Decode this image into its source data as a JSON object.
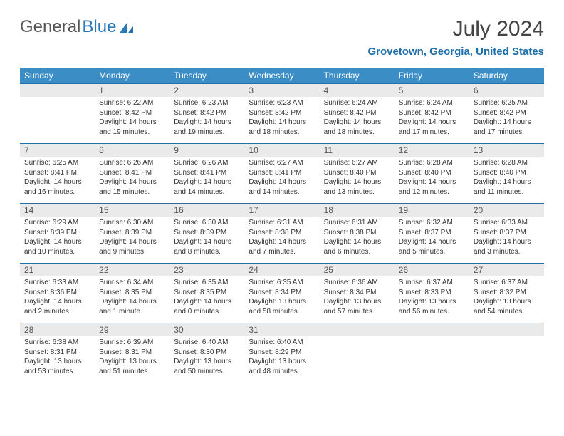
{
  "brand": {
    "part1": "General",
    "part2": "Blue"
  },
  "title": "July 2024",
  "location": "Grovetown, Georgia, United States",
  "colors": {
    "header_bg": "#3b8dc6",
    "header_text": "#ffffff",
    "accent": "#1f6fa8",
    "daynum_bg": "#eaeaea",
    "body_text": "#333333",
    "page_bg": "#ffffff"
  },
  "typography": {
    "title_fontsize": 30,
    "location_fontsize": 15,
    "dayheader_fontsize": 12,
    "daynum_fontsize": 12,
    "body_fontsize": 10
  },
  "day_headers": [
    "Sunday",
    "Monday",
    "Tuesday",
    "Wednesday",
    "Thursday",
    "Friday",
    "Saturday"
  ],
  "weeks": [
    [
      {
        "n": "",
        "sunrise": "",
        "sunset": "",
        "daylight": ""
      },
      {
        "n": "1",
        "sunrise": "Sunrise: 6:22 AM",
        "sunset": "Sunset: 8:42 PM",
        "daylight": "Daylight: 14 hours and 19 minutes."
      },
      {
        "n": "2",
        "sunrise": "Sunrise: 6:23 AM",
        "sunset": "Sunset: 8:42 PM",
        "daylight": "Daylight: 14 hours and 19 minutes."
      },
      {
        "n": "3",
        "sunrise": "Sunrise: 6:23 AM",
        "sunset": "Sunset: 8:42 PM",
        "daylight": "Daylight: 14 hours and 18 minutes."
      },
      {
        "n": "4",
        "sunrise": "Sunrise: 6:24 AM",
        "sunset": "Sunset: 8:42 PM",
        "daylight": "Daylight: 14 hours and 18 minutes."
      },
      {
        "n": "5",
        "sunrise": "Sunrise: 6:24 AM",
        "sunset": "Sunset: 8:42 PM",
        "daylight": "Daylight: 14 hours and 17 minutes."
      },
      {
        "n": "6",
        "sunrise": "Sunrise: 6:25 AM",
        "sunset": "Sunset: 8:42 PM",
        "daylight": "Daylight: 14 hours and 17 minutes."
      }
    ],
    [
      {
        "n": "7",
        "sunrise": "Sunrise: 6:25 AM",
        "sunset": "Sunset: 8:41 PM",
        "daylight": "Daylight: 14 hours and 16 minutes."
      },
      {
        "n": "8",
        "sunrise": "Sunrise: 6:26 AM",
        "sunset": "Sunset: 8:41 PM",
        "daylight": "Daylight: 14 hours and 15 minutes."
      },
      {
        "n": "9",
        "sunrise": "Sunrise: 6:26 AM",
        "sunset": "Sunset: 8:41 PM",
        "daylight": "Daylight: 14 hours and 14 minutes."
      },
      {
        "n": "10",
        "sunrise": "Sunrise: 6:27 AM",
        "sunset": "Sunset: 8:41 PM",
        "daylight": "Daylight: 14 hours and 14 minutes."
      },
      {
        "n": "11",
        "sunrise": "Sunrise: 6:27 AM",
        "sunset": "Sunset: 8:40 PM",
        "daylight": "Daylight: 14 hours and 13 minutes."
      },
      {
        "n": "12",
        "sunrise": "Sunrise: 6:28 AM",
        "sunset": "Sunset: 8:40 PM",
        "daylight": "Daylight: 14 hours and 12 minutes."
      },
      {
        "n": "13",
        "sunrise": "Sunrise: 6:28 AM",
        "sunset": "Sunset: 8:40 PM",
        "daylight": "Daylight: 14 hours and 11 minutes."
      }
    ],
    [
      {
        "n": "14",
        "sunrise": "Sunrise: 6:29 AM",
        "sunset": "Sunset: 8:39 PM",
        "daylight": "Daylight: 14 hours and 10 minutes."
      },
      {
        "n": "15",
        "sunrise": "Sunrise: 6:30 AM",
        "sunset": "Sunset: 8:39 PM",
        "daylight": "Daylight: 14 hours and 9 minutes."
      },
      {
        "n": "16",
        "sunrise": "Sunrise: 6:30 AM",
        "sunset": "Sunset: 8:39 PM",
        "daylight": "Daylight: 14 hours and 8 minutes."
      },
      {
        "n": "17",
        "sunrise": "Sunrise: 6:31 AM",
        "sunset": "Sunset: 8:38 PM",
        "daylight": "Daylight: 14 hours and 7 minutes."
      },
      {
        "n": "18",
        "sunrise": "Sunrise: 6:31 AM",
        "sunset": "Sunset: 8:38 PM",
        "daylight": "Daylight: 14 hours and 6 minutes."
      },
      {
        "n": "19",
        "sunrise": "Sunrise: 6:32 AM",
        "sunset": "Sunset: 8:37 PM",
        "daylight": "Daylight: 14 hours and 5 minutes."
      },
      {
        "n": "20",
        "sunrise": "Sunrise: 6:33 AM",
        "sunset": "Sunset: 8:37 PM",
        "daylight": "Daylight: 14 hours and 3 minutes."
      }
    ],
    [
      {
        "n": "21",
        "sunrise": "Sunrise: 6:33 AM",
        "sunset": "Sunset: 8:36 PM",
        "daylight": "Daylight: 14 hours and 2 minutes."
      },
      {
        "n": "22",
        "sunrise": "Sunrise: 6:34 AM",
        "sunset": "Sunset: 8:35 PM",
        "daylight": "Daylight: 14 hours and 1 minute."
      },
      {
        "n": "23",
        "sunrise": "Sunrise: 6:35 AM",
        "sunset": "Sunset: 8:35 PM",
        "daylight": "Daylight: 14 hours and 0 minutes."
      },
      {
        "n": "24",
        "sunrise": "Sunrise: 6:35 AM",
        "sunset": "Sunset: 8:34 PM",
        "daylight": "Daylight: 13 hours and 58 minutes."
      },
      {
        "n": "25",
        "sunrise": "Sunrise: 6:36 AM",
        "sunset": "Sunset: 8:34 PM",
        "daylight": "Daylight: 13 hours and 57 minutes."
      },
      {
        "n": "26",
        "sunrise": "Sunrise: 6:37 AM",
        "sunset": "Sunset: 8:33 PM",
        "daylight": "Daylight: 13 hours and 56 minutes."
      },
      {
        "n": "27",
        "sunrise": "Sunrise: 6:37 AM",
        "sunset": "Sunset: 8:32 PM",
        "daylight": "Daylight: 13 hours and 54 minutes."
      }
    ],
    [
      {
        "n": "28",
        "sunrise": "Sunrise: 6:38 AM",
        "sunset": "Sunset: 8:31 PM",
        "daylight": "Daylight: 13 hours and 53 minutes."
      },
      {
        "n": "29",
        "sunrise": "Sunrise: 6:39 AM",
        "sunset": "Sunset: 8:31 PM",
        "daylight": "Daylight: 13 hours and 51 minutes."
      },
      {
        "n": "30",
        "sunrise": "Sunrise: 6:40 AM",
        "sunset": "Sunset: 8:30 PM",
        "daylight": "Daylight: 13 hours and 50 minutes."
      },
      {
        "n": "31",
        "sunrise": "Sunrise: 6:40 AM",
        "sunset": "Sunset: 8:29 PM",
        "daylight": "Daylight: 13 hours and 48 minutes."
      },
      {
        "n": "",
        "sunrise": "",
        "sunset": "",
        "daylight": ""
      },
      {
        "n": "",
        "sunrise": "",
        "sunset": "",
        "daylight": ""
      },
      {
        "n": "",
        "sunrise": "",
        "sunset": "",
        "daylight": ""
      }
    ]
  ]
}
